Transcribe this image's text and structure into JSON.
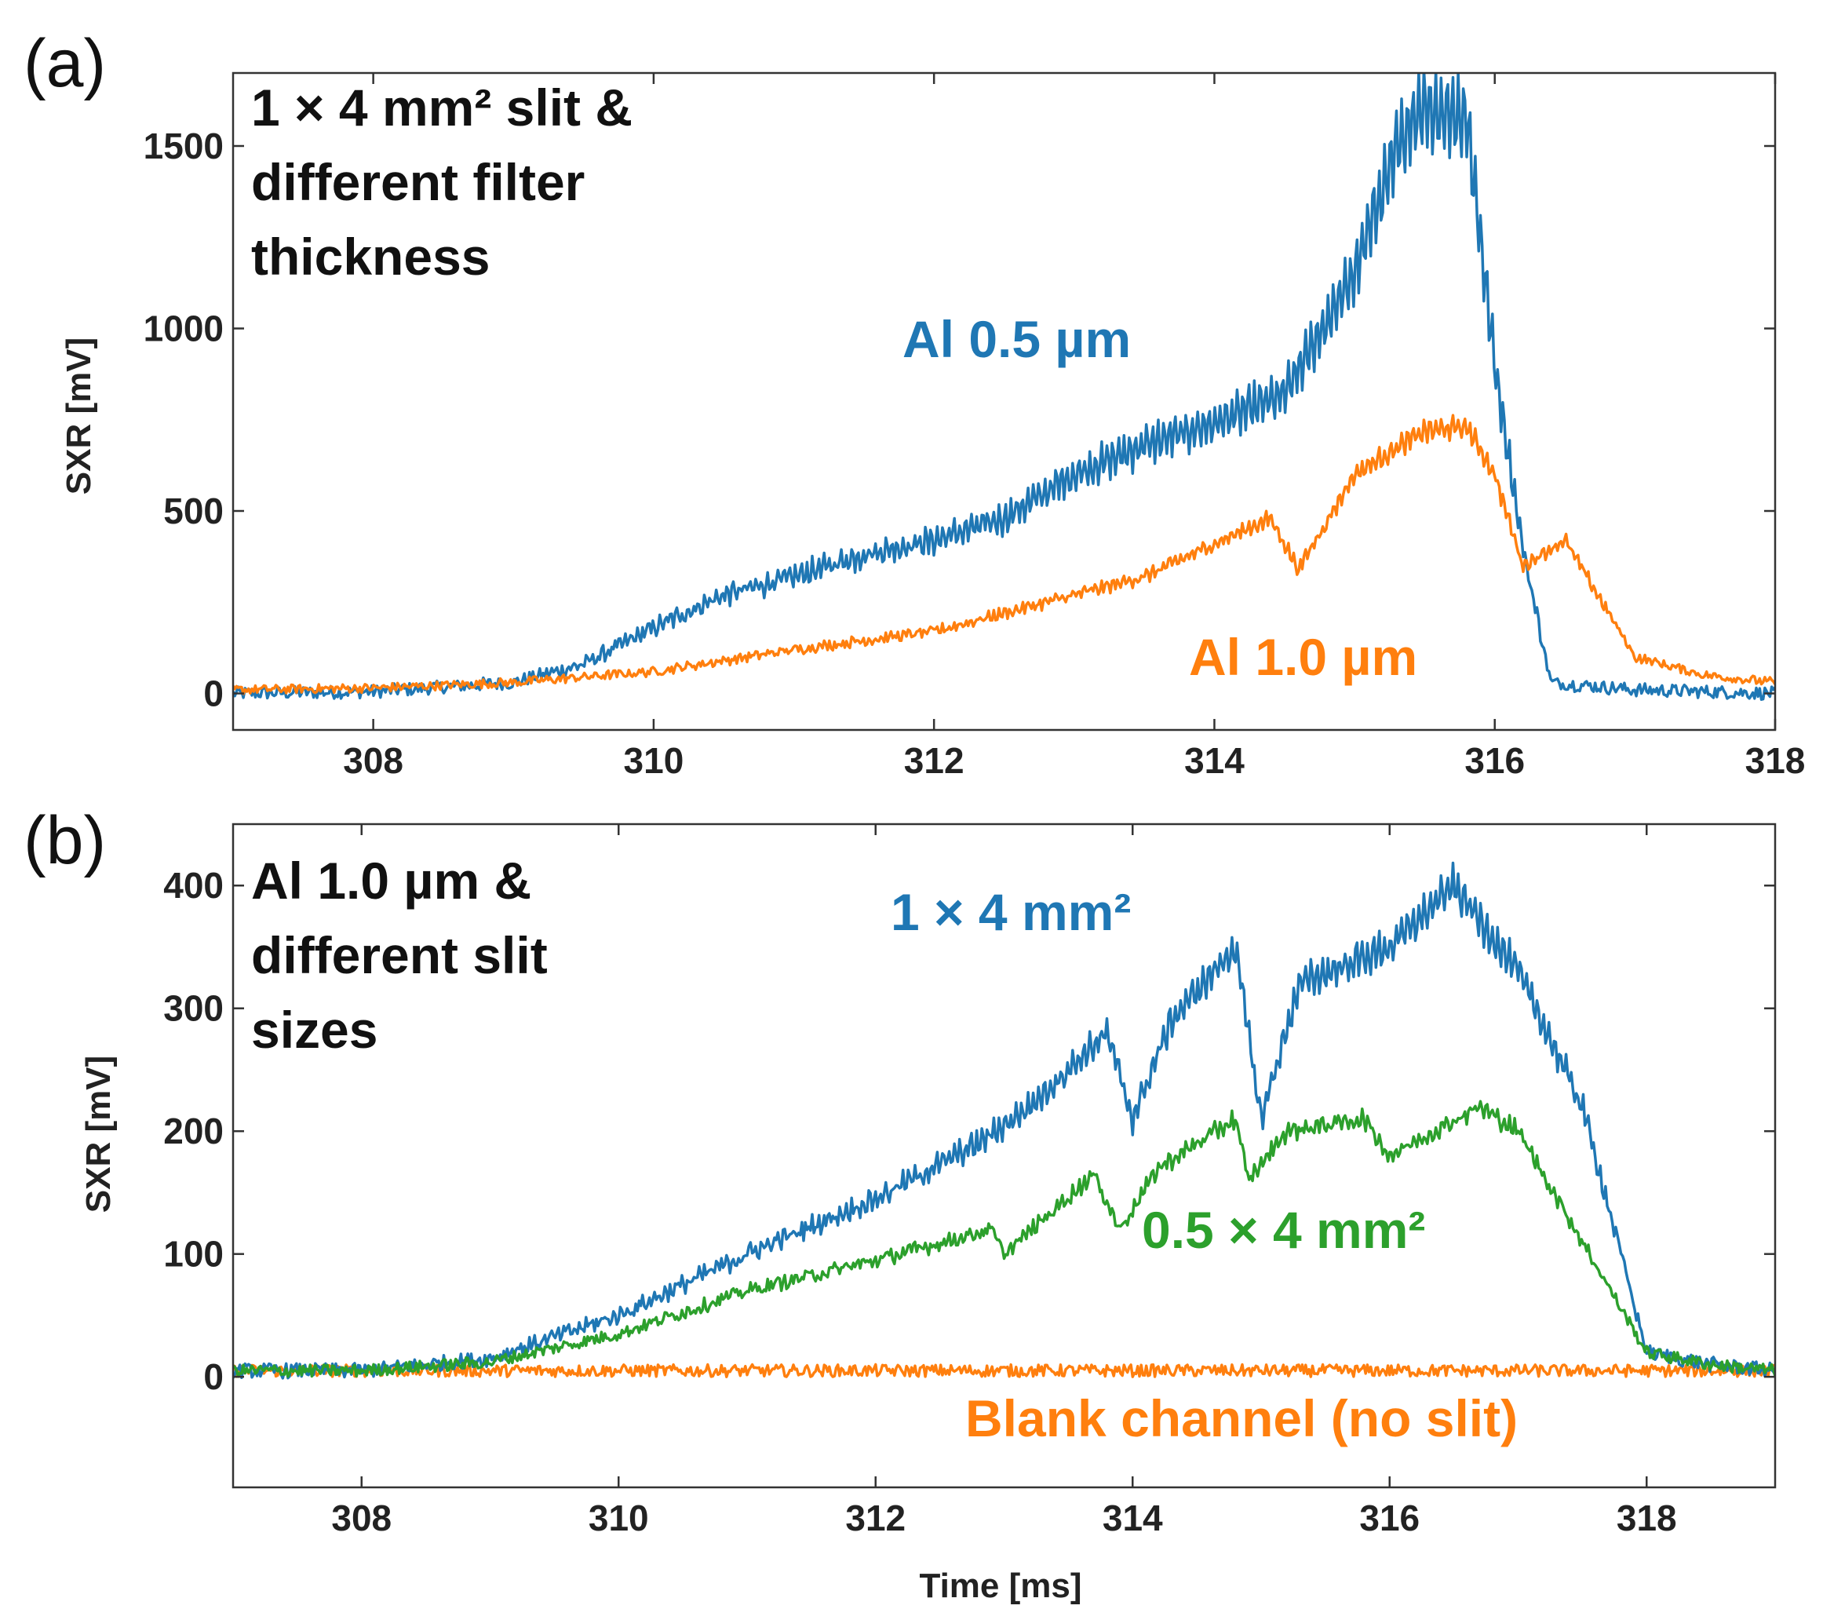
{
  "chart_data": [
    {
      "panel_label": "(a)",
      "type": "line",
      "title": "",
      "annotation_lines": [
        "1 × 4 mm² slit &",
        "different filter",
        "thickness"
      ],
      "xlabel": "",
      "ylabel": "SXR [mV]",
      "xlim": [
        307,
        318
      ],
      "ylim": [
        -100,
        1700
      ],
      "xticks": [
        308,
        310,
        312,
        314,
        316,
        318
      ],
      "yticks": [
        0,
        500,
        1000,
        1500
      ],
      "grid": false,
      "series": [
        {
          "name": "Al 0.5 µm",
          "color": "#1f77b4",
          "noise": 18,
          "oscillation": 60,
          "x": [
            307,
            308,
            309,
            309.5,
            310,
            310.5,
            311,
            311.5,
            312,
            312.5,
            313,
            313.5,
            314,
            314.5,
            315,
            315.3,
            315.5,
            315.8,
            316,
            316.2,
            316.4,
            317,
            318
          ],
          "y": [
            0,
            5,
            30,
            80,
            180,
            270,
            320,
            380,
            420,
            480,
            600,
            680,
            740,
            820,
            1150,
            1500,
            1600,
            1580,
            900,
            400,
            30,
            10,
            0
          ]
        },
        {
          "name": "Al 1.0 µm",
          "color": "#ff7f0e",
          "noise": 12,
          "oscillation": 30,
          "x": [
            307,
            308,
            309,
            310,
            311,
            312,
            312.5,
            313,
            313.5,
            314,
            314.4,
            314.6,
            315,
            315.5,
            315.8,
            316,
            316.2,
            316.5,
            317,
            317.5,
            318
          ],
          "y": [
            10,
            15,
            30,
            60,
            120,
            170,
            220,
            270,
            320,
            410,
            480,
            340,
            600,
            720,
            730,
            600,
            350,
            420,
            100,
            50,
            30
          ]
        }
      ]
    },
    {
      "panel_label": "(b)",
      "type": "line",
      "title": "",
      "annotation_lines": [
        "Al 1.0 µm &",
        "different slit",
        "sizes"
      ],
      "xlabel": "Time [ms]",
      "ylabel": "SXR [mV]",
      "xlim": [
        307,
        319
      ],
      "ylim": [
        -90,
        450
      ],
      "xticks": [
        308,
        310,
        312,
        314,
        316,
        318
      ],
      "yticks": [
        0,
        100,
        200,
        300,
        400
      ],
      "grid": false,
      "series": [
        {
          "name": "1 × 4 mm²",
          "color": "#1f77b4",
          "noise": 6,
          "oscillation": 8,
          "x": [
            307,
            308,
            309,
            310,
            311,
            312,
            312.8,
            313.2,
            313.8,
            314,
            314.3,
            314.8,
            315,
            315.3,
            316,
            316.5,
            317,
            317.5,
            318,
            318.5,
            319
          ],
          "y": [
            5,
            5,
            15,
            50,
            100,
            145,
            190,
            220,
            280,
            210,
            290,
            350,
            210,
            320,
            350,
            400,
            330,
            220,
            20,
            10,
            5
          ]
        },
        {
          "name": "0.5 × 4 mm²",
          "color": "#2ca02c",
          "noise": 5,
          "oscillation": 5,
          "x": [
            307,
            308,
            309,
            310,
            311,
            312,
            312.9,
            313,
            313.7,
            313.9,
            314.2,
            314.8,
            314.9,
            315.2,
            315.8,
            316,
            316.7,
            317,
            317.5,
            318,
            318.5,
            319
          ],
          "y": [
            5,
            5,
            12,
            35,
            70,
            95,
            120,
            100,
            165,
            120,
            170,
            210,
            160,
            200,
            210,
            180,
            220,
            200,
            110,
            20,
            10,
            5
          ]
        },
        {
          "name": "Blank channel (no slit)",
          "color": "#ff7f0e",
          "noise": 5,
          "oscillation": 0,
          "x": [
            307,
            319
          ],
          "y": [
            5,
            5
          ]
        }
      ]
    }
  ]
}
